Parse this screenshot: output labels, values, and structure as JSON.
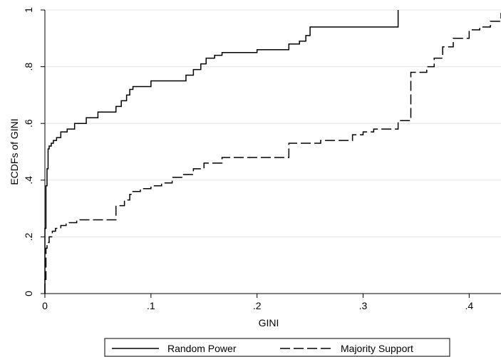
{
  "chart_data": {
    "type": "line",
    "step": true,
    "xlabel": "GINI",
    "ylabel": "ECDFs of GINI",
    "xlim": [
      0,
      0.43
    ],
    "ylim": [
      0,
      1
    ],
    "xticks": [
      {
        "value": 0,
        "label": "0"
      },
      {
        "value": 0.1,
        "label": ".1"
      },
      {
        "value": 0.2,
        "label": ".2"
      },
      {
        "value": 0.3,
        "label": ".3"
      },
      {
        "value": 0.4,
        "label": ".4"
      }
    ],
    "yticks": [
      {
        "value": 0,
        "label": "0"
      },
      {
        "value": 0.2,
        "label": ".2"
      },
      {
        "value": 0.4,
        "label": ".4"
      },
      {
        "value": 0.6,
        "label": ".6"
      },
      {
        "value": 0.8,
        "label": ".8"
      },
      {
        "value": 1,
        "label": "1"
      }
    ],
    "grid": "horizontal",
    "legend_position": "bottom",
    "series": [
      {
        "name": "Random Power",
        "style": "solid",
        "color": "#000000",
        "x": [
          0,
          0.001,
          0.002,
          0.003,
          0.004,
          0.006,
          0.008,
          0.011,
          0.015,
          0.021,
          0.028,
          0.039,
          0.05,
          0.067,
          0.072,
          0.077,
          0.08,
          0.083,
          0.1,
          0.133,
          0.14,
          0.147,
          0.152,
          0.16,
          0.167,
          0.2,
          0.23,
          0.24,
          0.246,
          0.25,
          0.333
        ],
        "y": [
          0.23,
          0.38,
          0.44,
          0.51,
          0.52,
          0.53,
          0.54,
          0.55,
          0.57,
          0.58,
          0.6,
          0.62,
          0.64,
          0.66,
          0.68,
          0.7,
          0.72,
          0.73,
          0.75,
          0.77,
          0.79,
          0.81,
          0.83,
          0.84,
          0.85,
          0.86,
          0.88,
          0.89,
          0.91,
          0.94,
          1.0
        ]
      },
      {
        "name": "Majority Support",
        "style": "dashed",
        "color": "#000000",
        "x": [
          0,
          0.001,
          0.002,
          0.004,
          0.007,
          0.01,
          0.015,
          0.02,
          0.03,
          0.067,
          0.075,
          0.08,
          0.083,
          0.09,
          0.1,
          0.11,
          0.12,
          0.13,
          0.14,
          0.15,
          0.167,
          0.23,
          0.26,
          0.29,
          0.3,
          0.31,
          0.333,
          0.345,
          0.36,
          0.367,
          0.375,
          0.385,
          0.4,
          0.41,
          0.42,
          0.43
        ],
        "y": [
          0.05,
          0.16,
          0.18,
          0.2,
          0.22,
          0.23,
          0.24,
          0.25,
          0.26,
          0.31,
          0.33,
          0.35,
          0.36,
          0.37,
          0.38,
          0.39,
          0.41,
          0.42,
          0.44,
          0.46,
          0.48,
          0.53,
          0.54,
          0.56,
          0.57,
          0.58,
          0.61,
          0.78,
          0.8,
          0.83,
          0.87,
          0.9,
          0.93,
          0.94,
          0.96,
          0.99
        ]
      }
    ]
  }
}
